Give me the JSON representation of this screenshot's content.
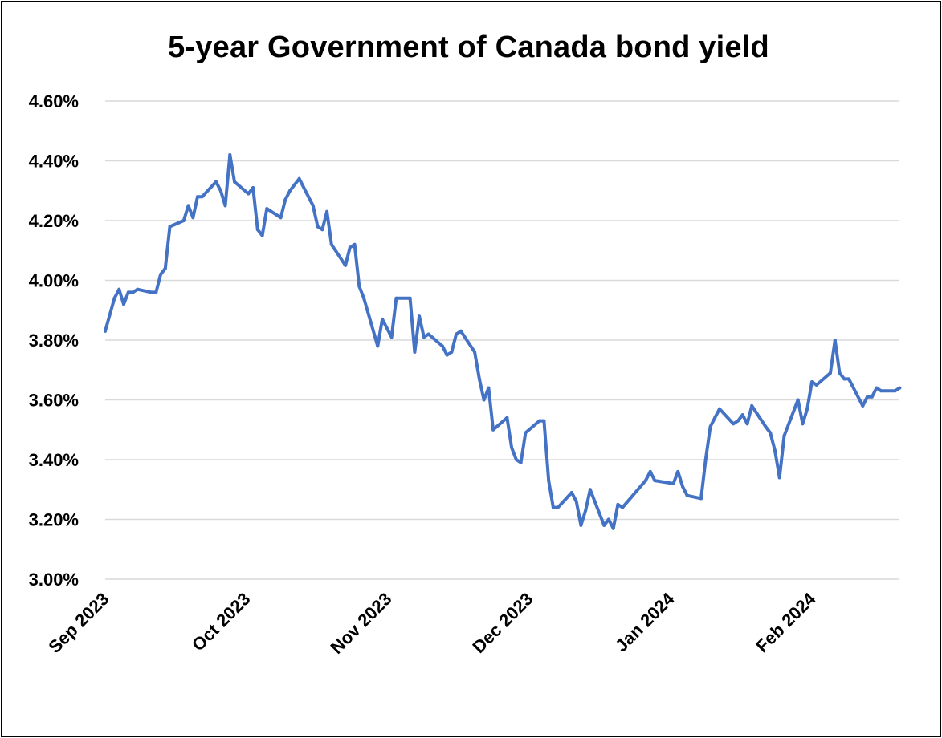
{
  "chart_data": {
    "type": "line",
    "title": "5-year Government of Canada bond yield",
    "xlabel": "",
    "ylabel": "",
    "ylim": [
      3.0,
      4.6
    ],
    "y_ticks": [
      "3.00%",
      "3.20%",
      "3.40%",
      "3.60%",
      "3.80%",
      "4.00%",
      "4.20%",
      "4.40%",
      "4.60%"
    ],
    "x_ticks": [
      "Sep 2023",
      "Oct 2023",
      "Nov 2023",
      "Dec 2023",
      "Jan 2024",
      "Feb 2024"
    ],
    "x_tick_dates": [
      "2023-09-01",
      "2023-10-01",
      "2023-11-01",
      "2023-12-01",
      "2024-01-01",
      "2024-02-01"
    ],
    "x_range": [
      "2023-09-01",
      "2024-02-20"
    ],
    "grid": true,
    "legend": "none",
    "series": [
      {
        "color": "#4472C4",
        "x": [
          "2023-09-01",
          "2023-09-03",
          "2023-09-04",
          "2023-09-05",
          "2023-09-06",
          "2023-09-07",
          "2023-09-08",
          "2023-09-11",
          "2023-09-12",
          "2023-09-13",
          "2023-09-14",
          "2023-09-15",
          "2023-09-18",
          "2023-09-19",
          "2023-09-20",
          "2023-09-21",
          "2023-09-22",
          "2023-09-25",
          "2023-09-26",
          "2023-09-27",
          "2023-09-28",
          "2023-09-29",
          "2023-10-02",
          "2023-10-03",
          "2023-10-04",
          "2023-10-05",
          "2023-10-06",
          "2023-10-09",
          "2023-10-10",
          "2023-10-11",
          "2023-10-12",
          "2023-10-13",
          "2023-10-16",
          "2023-10-17",
          "2023-10-18",
          "2023-10-19",
          "2023-10-20",
          "2023-10-23",
          "2023-10-24",
          "2023-10-25",
          "2023-10-26",
          "2023-10-27",
          "2023-10-30",
          "2023-10-31",
          "2023-11-01",
          "2023-11-02",
          "2023-11-03",
          "2023-11-06",
          "2023-11-07",
          "2023-11-08",
          "2023-11-09",
          "2023-11-10",
          "2023-11-13",
          "2023-11-14",
          "2023-11-15",
          "2023-11-16",
          "2023-11-17",
          "2023-11-20",
          "2023-11-21",
          "2023-11-22",
          "2023-11-23",
          "2023-11-24",
          "2023-11-27",
          "2023-11-28",
          "2023-11-29",
          "2023-11-30",
          "2023-12-01",
          "2023-12-04",
          "2023-12-05",
          "2023-12-06",
          "2023-12-07",
          "2023-12-08",
          "2023-12-11",
          "2023-12-12",
          "2023-12-13",
          "2023-12-14",
          "2023-12-15",
          "2023-12-18",
          "2023-12-19",
          "2023-12-20",
          "2023-12-21",
          "2023-12-22",
          "2023-12-27",
          "2023-12-28",
          "2023-12-29",
          "2024-01-02",
          "2024-01-03",
          "2024-01-04",
          "2024-01-05",
          "2024-01-08",
          "2024-01-09",
          "2024-01-10",
          "2024-01-11",
          "2024-01-12",
          "2024-01-15",
          "2024-01-16",
          "2024-01-17",
          "2024-01-18",
          "2024-01-19",
          "2024-01-22",
          "2024-01-23",
          "2024-01-24",
          "2024-01-25",
          "2024-01-26",
          "2024-01-29",
          "2024-01-30",
          "2024-01-31",
          "2024-02-01",
          "2024-02-02",
          "2024-02-05",
          "2024-02-06",
          "2024-02-07",
          "2024-02-08",
          "2024-02-09",
          "2024-02-12",
          "2024-02-13",
          "2024-02-14",
          "2024-02-15",
          "2024-02-16",
          "2024-02-19",
          "2024-02-20"
        ],
        "values": [
          3.83,
          3.94,
          3.97,
          3.92,
          3.96,
          3.96,
          3.97,
          3.96,
          3.96,
          4.02,
          4.04,
          4.18,
          4.2,
          4.25,
          4.21,
          4.28,
          4.28,
          4.33,
          4.3,
          4.25,
          4.42,
          4.33,
          4.29,
          4.31,
          4.17,
          4.15,
          4.24,
          4.21,
          4.27,
          4.3,
          4.32,
          4.34,
          4.25,
          4.18,
          4.17,
          4.23,
          4.12,
          4.05,
          4.11,
          4.12,
          3.98,
          3.94,
          3.78,
          3.87,
          3.84,
          3.81,
          3.94,
          3.94,
          3.76,
          3.88,
          3.81,
          3.82,
          3.78,
          3.75,
          3.76,
          3.82,
          3.83,
          3.76,
          3.67,
          3.6,
          3.64,
          3.5,
          3.54,
          3.44,
          3.4,
          3.39,
          3.49,
          3.53,
          3.53,
          3.33,
          3.24,
          3.24,
          3.29,
          3.26,
          3.18,
          3.23,
          3.3,
          3.18,
          3.2,
          3.17,
          3.25,
          3.24,
          3.33,
          3.36,
          3.33,
          3.32,
          3.36,
          3.31,
          3.28,
          3.27,
          3.4,
          3.51,
          3.54,
          3.57,
          3.52,
          3.53,
          3.55,
          3.52,
          3.58,
          3.51,
          3.49,
          3.43,
          3.34,
          3.48,
          3.6,
          3.52,
          3.57,
          3.66,
          3.65,
          3.69,
          3.8,
          3.69,
          3.67,
          3.67,
          3.58,
          3.61,
          3.61,
          3.64,
          3.63,
          3.63,
          3.64
        ]
      }
    ]
  }
}
